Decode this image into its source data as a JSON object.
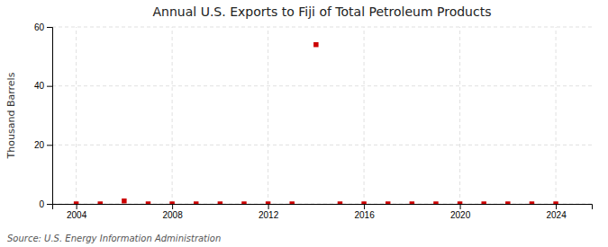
{
  "chart_data": {
    "type": "scatter",
    "title": "Annual U.S. Exports to Fiji of Total Petroleum Products",
    "ylabel": "Thousand Barrels",
    "annotation": "Source: U.S. Energy Information Administration",
    "x": [
      2004,
      2005,
      2006,
      2007,
      2008,
      2009,
      2010,
      2011,
      2012,
      2013,
      2014,
      2015,
      2016,
      2017,
      2018,
      2019,
      2020,
      2021,
      2022,
      2023,
      2024
    ],
    "values": [
      0,
      0,
      1,
      0,
      0,
      0,
      0,
      0,
      0,
      0,
      54,
      0,
      0,
      0,
      0,
      0,
      0,
      0,
      0,
      0,
      0
    ],
    "color": "#cc0000",
    "marker": "square",
    "xlim": [
      2003.0,
      2025.5
    ],
    "ylim": [
      0,
      60
    ],
    "yticks": [
      0,
      20,
      40,
      60
    ],
    "xticks": [
      2004,
      2008,
      2012,
      2016,
      2020,
      2024
    ],
    "grid": true
  }
}
